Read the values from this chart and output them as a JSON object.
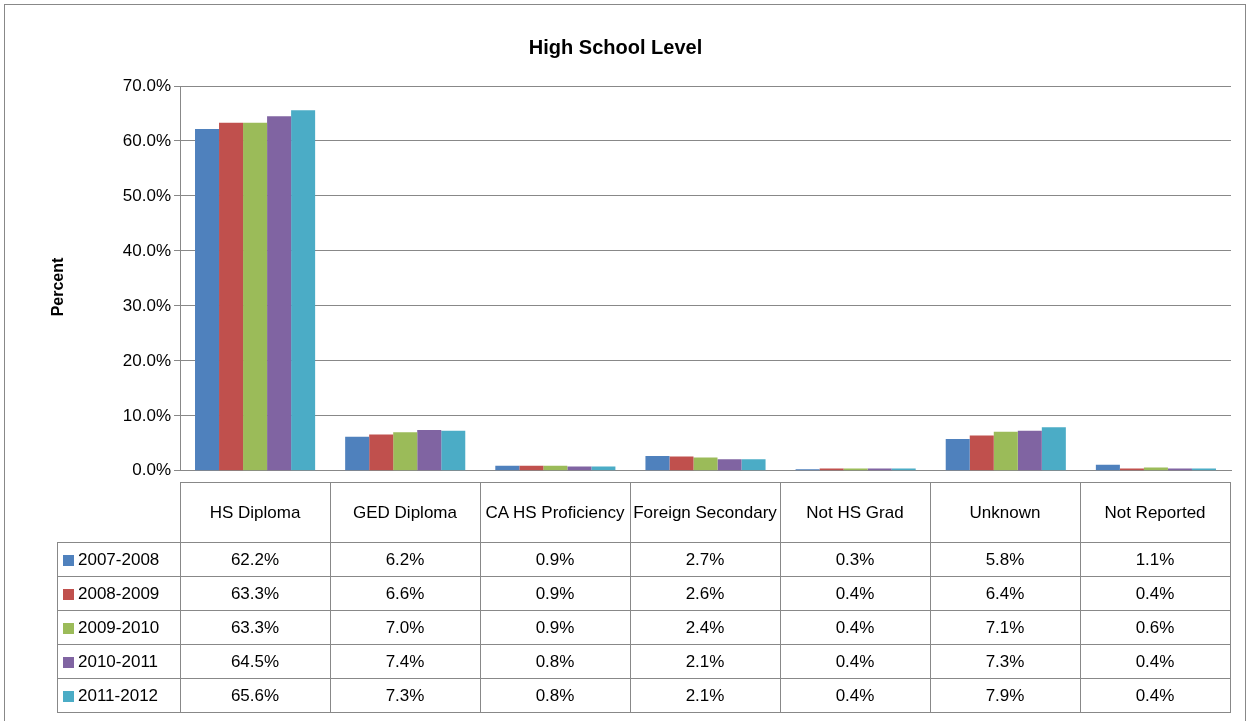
{
  "chart_data": {
    "type": "bar",
    "title": "High School Level",
    "ylabel": "Percent",
    "categories": [
      "HS Diploma",
      "GED Diploma",
      "CA HS Proficiency",
      "Foreign Secondary",
      "Not HS Grad",
      "Unknown",
      "Not Reported"
    ],
    "series": [
      {
        "name": "2007-2008",
        "color": "#4f81bd",
        "values": [
          62.2,
          6.2,
          0.9,
          2.7,
          0.3,
          5.8,
          1.1
        ],
        "value_labels": [
          "62.2%",
          "6.2%",
          "0.9%",
          "2.7%",
          "0.3%",
          "5.8%",
          "1.1%"
        ]
      },
      {
        "name": "2008-2009",
        "color": "#c0504d",
        "values": [
          63.3,
          6.6,
          0.9,
          2.6,
          0.4,
          6.4,
          0.4
        ],
        "value_labels": [
          "63.3%",
          "6.6%",
          "0.9%",
          "2.6%",
          "0.4%",
          "6.4%",
          "0.4%"
        ]
      },
      {
        "name": "2009-2010",
        "color": "#9bbb59",
        "values": [
          63.3,
          7.0,
          0.9,
          2.4,
          0.4,
          7.1,
          0.6
        ],
        "value_labels": [
          "63.3%",
          "7.0%",
          "0.9%",
          "2.4%",
          "0.4%",
          "7.1%",
          "0.6%"
        ]
      },
      {
        "name": "2010-2011",
        "color": "#8064a2",
        "values": [
          64.5,
          7.4,
          0.8,
          2.1,
          0.4,
          7.3,
          0.4
        ],
        "value_labels": [
          "64.5%",
          "7.4%",
          "0.8%",
          "2.1%",
          "0.4%",
          "7.3%",
          "0.4%"
        ]
      },
      {
        "name": "2011-2012",
        "color": "#4bacc6",
        "values": [
          65.6,
          7.3,
          0.8,
          2.1,
          0.4,
          7.9,
          0.4
        ],
        "value_labels": [
          "65.6%",
          "7.3%",
          "0.8%",
          "2.1%",
          "0.4%",
          "7.9%",
          "0.4%"
        ]
      }
    ],
    "ylim": [
      0,
      70
    ],
    "yticks": [
      {
        "value": 0,
        "label": "0.0%"
      },
      {
        "value": 10,
        "label": "10.0%"
      },
      {
        "value": 20,
        "label": "20.0%"
      },
      {
        "value": 30,
        "label": "30.0%"
      },
      {
        "value": 40,
        "label": "40.0%"
      },
      {
        "value": 50,
        "label": "50.0%"
      },
      {
        "value": 60,
        "label": "60.0%"
      },
      {
        "value": 70,
        "label": "70.0%"
      }
    ],
    "grid": "y",
    "legend": "bottom"
  }
}
